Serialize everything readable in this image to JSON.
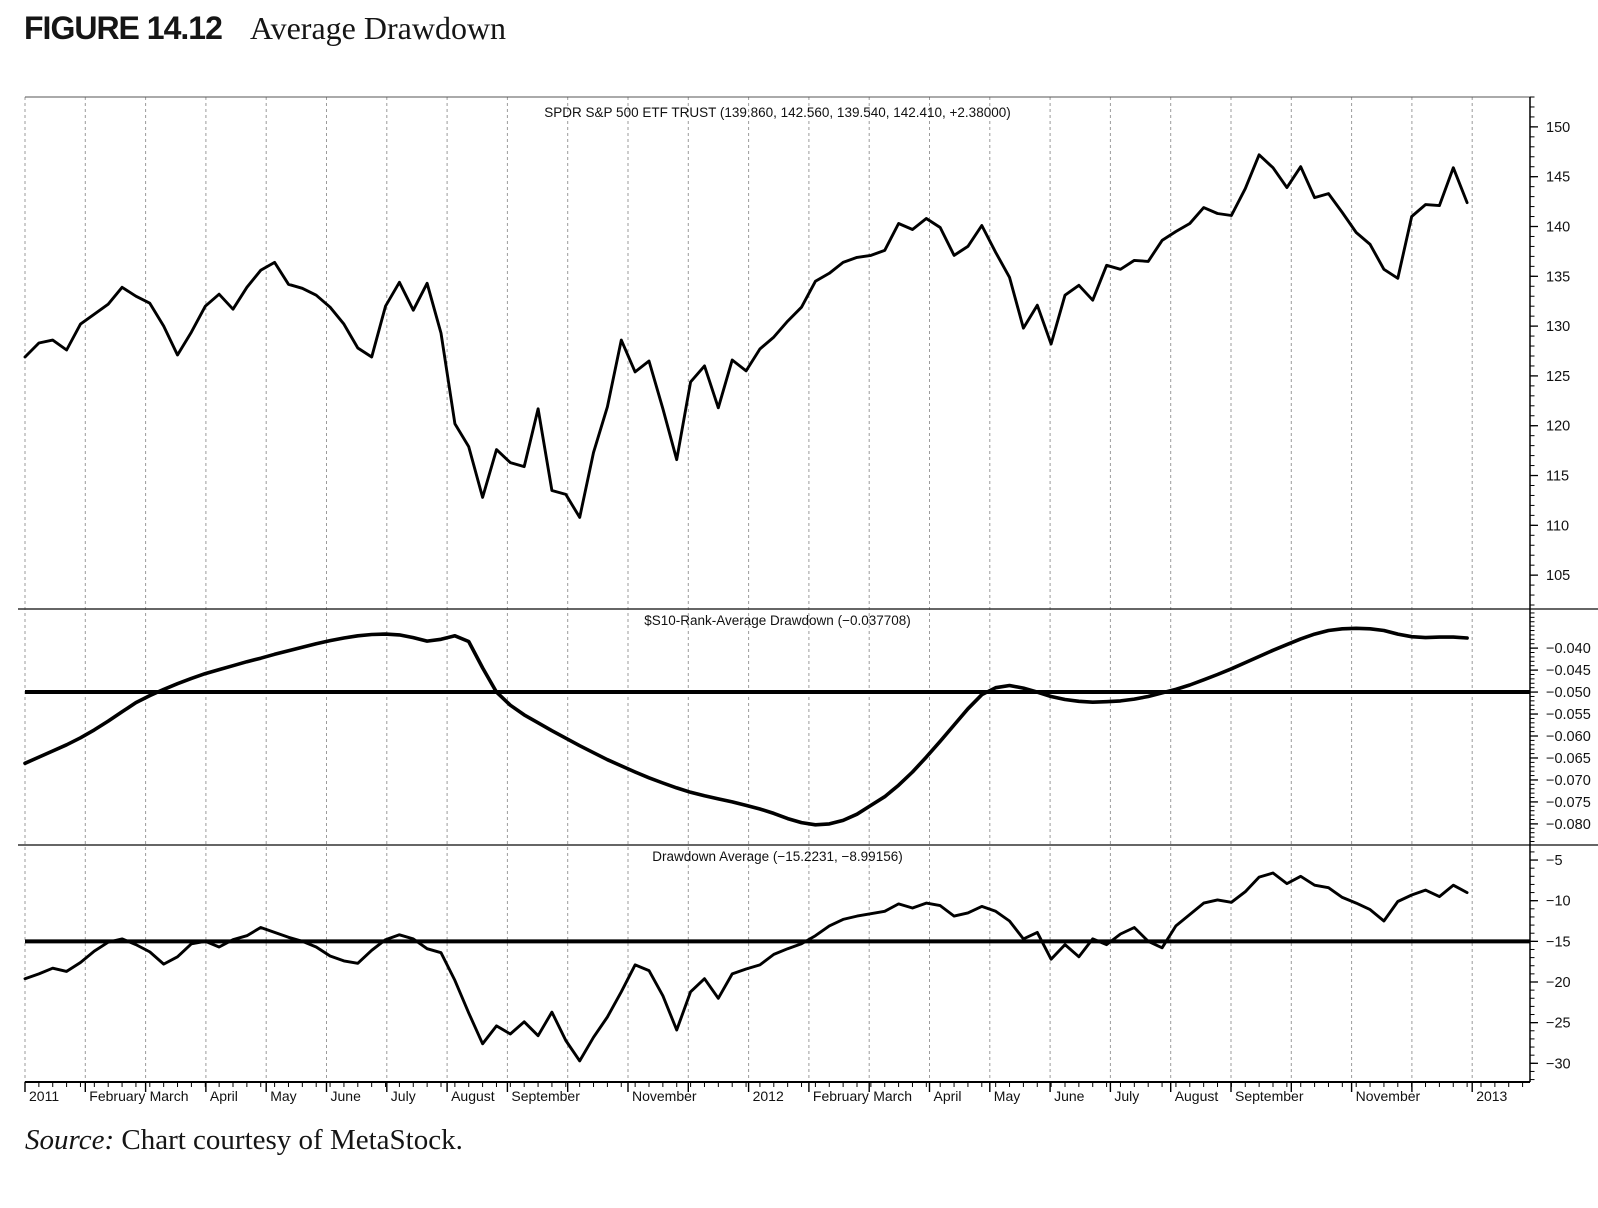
{
  "figure": {
    "label": "FIGURE 14.12",
    "title": "Average Drawdown"
  },
  "source": {
    "italic": "Source:",
    "rest": " Chart courtesy of MetaStock."
  },
  "layout_colors": {
    "grid": "#9b9b9b",
    "line": "#000000",
    "axis": "#000000",
    "text": "#111111"
  },
  "x_axis": {
    "weeks_total": 105,
    "gridline_months": [
      0,
      1,
      2,
      3,
      4,
      5,
      6,
      7,
      8,
      9,
      10,
      11,
      12,
      13,
      14,
      15,
      16,
      17,
      18,
      19,
      20,
      21,
      22,
      23,
      24
    ],
    "labels": [
      {
        "text": "2011",
        "month": 0
      },
      {
        "text": "February",
        "month": 1
      },
      {
        "text": "March",
        "month": 2
      },
      {
        "text": "April",
        "month": 3
      },
      {
        "text": "May",
        "month": 4
      },
      {
        "text": "June",
        "month": 5
      },
      {
        "text": "July",
        "month": 6
      },
      {
        "text": "August",
        "month": 7
      },
      {
        "text": "September",
        "month": 8
      },
      {
        "text": "November",
        "month": 10
      },
      {
        "text": "2012",
        "month": 12
      },
      {
        "text": "February",
        "month": 13
      },
      {
        "text": "March",
        "month": 14
      },
      {
        "text": "April",
        "month": 15
      },
      {
        "text": "May",
        "month": 16
      },
      {
        "text": "June",
        "month": 17
      },
      {
        "text": "July",
        "month": 18
      },
      {
        "text": "August",
        "month": 19
      },
      {
        "text": "September",
        "month": 20
      },
      {
        "text": "November",
        "month": 22
      },
      {
        "text": "2013",
        "month": 24
      }
    ]
  },
  "chart_data": [
    {
      "type": "line",
      "title": "SPDR S&P 500 ETF TRUST (139.860, 142.560, 139.540, 142.410, +2.38000)",
      "legend_position": "top-center",
      "grid": "vertical-dashed-monthly",
      "ylim": [
        101.6,
        153.0
      ],
      "ytick_range": [
        105,
        150
      ],
      "ytick_major": 5,
      "ytick_minor": 1,
      "decimals": 0,
      "x_unit": "weeks from 2011-01 to 2013-01",
      "values": [
        126.9,
        128.3,
        128.6,
        127.6,
        130.2,
        131.2,
        132.2,
        133.9,
        133.0,
        132.3,
        130.0,
        127.1,
        129.4,
        132.0,
        133.2,
        131.7,
        133.9,
        135.6,
        136.4,
        134.2,
        133.8,
        133.1,
        131.9,
        130.2,
        127.8,
        126.9,
        132.0,
        134.4,
        131.6,
        134.3,
        129.3,
        120.2,
        117.9,
        112.8,
        117.6,
        116.3,
        115.9,
        121.7,
        113.5,
        113.1,
        110.8,
        117.3,
        121.9,
        128.6,
        125.4,
        126.5,
        121.7,
        116.6,
        124.4,
        126.0,
        121.8,
        126.6,
        125.5,
        127.7,
        128.9,
        130.5,
        131.9,
        134.5,
        135.3,
        136.4,
        136.9,
        137.1,
        137.6,
        140.3,
        139.7,
        140.8,
        139.9,
        137.1,
        138.0,
        140.1,
        137.4,
        134.9,
        129.8,
        132.1,
        128.2,
        133.1,
        134.1,
        132.6,
        136.1,
        135.7,
        136.6,
        136.5,
        138.6,
        139.5,
        140.3,
        141.9,
        141.3,
        141.1,
        143.8,
        147.2,
        145.9,
        143.9,
        146.0,
        142.9,
        143.3,
        141.4,
        139.4,
        138.2,
        135.7,
        134.8,
        141.0,
        142.2,
        142.1,
        145.9,
        142.4
      ]
    },
    {
      "type": "line",
      "title": "$S10-Rank-Average Drawdown (−0.037708)",
      "legend_position": "top-center",
      "grid": "vertical-dashed-monthly",
      "ylim": [
        -0.0848,
        -0.0311
      ],
      "ytick_range": [
        -0.08,
        -0.04
      ],
      "ytick_major": 0.005,
      "ytick_minor": 0.001,
      "decimals": 3,
      "hline": -0.05,
      "values": [
        -0.0662,
        -0.0648,
        -0.0634,
        -0.062,
        -0.0604,
        -0.0586,
        -0.0566,
        -0.0545,
        -0.0524,
        -0.0508,
        -0.0494,
        -0.0481,
        -0.0469,
        -0.0458,
        -0.0449,
        -0.044,
        -0.0431,
        -0.0423,
        -0.0414,
        -0.0406,
        -0.0398,
        -0.039,
        -0.0383,
        -0.0377,
        -0.0372,
        -0.0369,
        -0.0368,
        -0.037,
        -0.0376,
        -0.0384,
        -0.038,
        -0.0372,
        -0.0385,
        -0.0445,
        -0.05,
        -0.053,
        -0.0552,
        -0.057,
        -0.0588,
        -0.0605,
        -0.0622,
        -0.0638,
        -0.0654,
        -0.0668,
        -0.0682,
        -0.0695,
        -0.0707,
        -0.0718,
        -0.0728,
        -0.0736,
        -0.0743,
        -0.075,
        -0.0758,
        -0.0766,
        -0.0776,
        -0.0788,
        -0.0797,
        -0.0802,
        -0.08,
        -0.0792,
        -0.0778,
        -0.0758,
        -0.0738,
        -0.0712,
        -0.0682,
        -0.0648,
        -0.0612,
        -0.0575,
        -0.0538,
        -0.0506,
        -0.049,
        -0.0485,
        -0.0491,
        -0.05,
        -0.051,
        -0.0517,
        -0.0521,
        -0.0523,
        -0.0522,
        -0.052,
        -0.0516,
        -0.051,
        -0.0502,
        -0.0494,
        -0.0484,
        -0.0472,
        -0.046,
        -0.0447,
        -0.0433,
        -0.0419,
        -0.0405,
        -0.0392,
        -0.0379,
        -0.0368,
        -0.036,
        -0.0356,
        -0.0355,
        -0.0356,
        -0.036,
        -0.0368,
        -0.0374,
        -0.0376,
        -0.0375,
        -0.0375,
        -0.0377
      ]
    },
    {
      "type": "line",
      "title": "Drawdown Average (−15.2231, −8.99156)",
      "legend_position": "top-center",
      "grid": "vertical-dashed-monthly",
      "ylim": [
        -32.3,
        -3.15
      ],
      "ytick_range": [
        -30,
        -5
      ],
      "ytick_major": 5,
      "ytick_minor": 1,
      "decimals": 0,
      "hline": -15,
      "values": [
        -19.6,
        -19.0,
        -18.3,
        -18.7,
        -17.6,
        -16.2,
        -15.1,
        -14.7,
        -15.4,
        -16.3,
        -17.8,
        -16.9,
        -15.3,
        -15.0,
        -15.7,
        -14.8,
        -14.3,
        -13.3,
        -13.9,
        -14.5,
        -15.0,
        -15.7,
        -16.8,
        -17.4,
        -17.7,
        -16.1,
        -14.8,
        -14.2,
        -14.7,
        -15.9,
        -16.4,
        -19.8,
        -23.8,
        -27.6,
        -25.4,
        -26.4,
        -24.9,
        -26.6,
        -23.7,
        -27.2,
        -29.7,
        -26.8,
        -24.3,
        -21.2,
        -17.9,
        -18.6,
        -21.7,
        -25.9,
        -21.2,
        -19.6,
        -22.0,
        -19.0,
        -18.4,
        -17.9,
        -16.6,
        -15.9,
        -15.3,
        -14.3,
        -13.1,
        -12.3,
        -11.9,
        -11.6,
        -11.3,
        -10.4,
        -10.9,
        -10.3,
        -10.6,
        -11.9,
        -11.5,
        -10.7,
        -11.3,
        -12.5,
        -14.7,
        -13.9,
        -17.2,
        -15.4,
        -16.9,
        -14.7,
        -15.4,
        -14.1,
        -13.3,
        -15.0,
        -15.8,
        -13.1,
        -11.7,
        -10.3,
        -9.9,
        -10.2,
        -8.9,
        -7.1,
        -6.6,
        -7.9,
        -7.0,
        -8.1,
        -8.4,
        -9.6,
        -10.3,
        -11.1,
        -12.5,
        -10.1,
        -9.3,
        -8.7,
        -9.5,
        -8.1,
        -9.0
      ]
    }
  ]
}
